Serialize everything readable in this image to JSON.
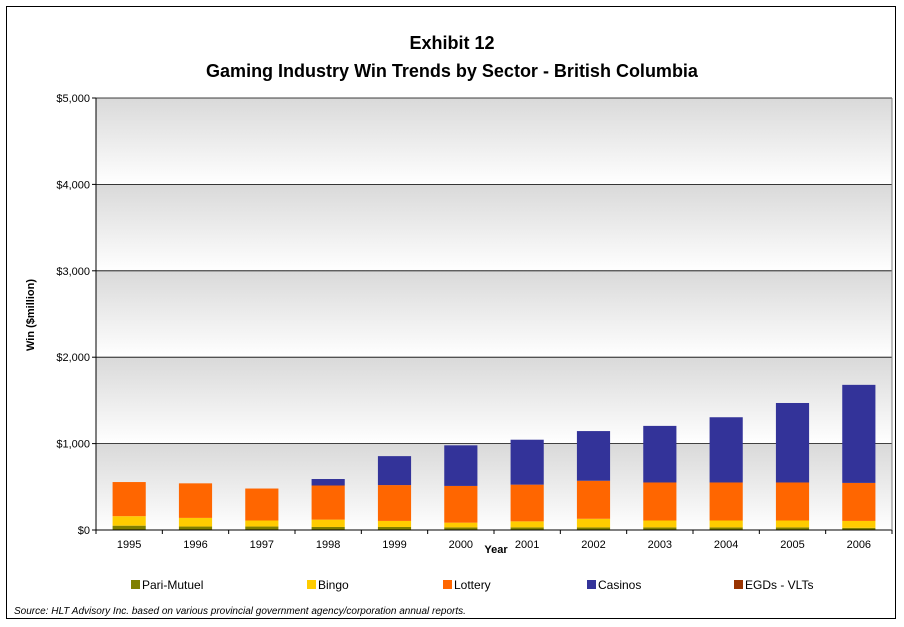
{
  "chart_data": {
    "type": "bar",
    "stacked": true,
    "title": "Exhibit 12",
    "subtitle": "Gaming Industry Win Trends by Sector - British Columbia",
    "xlabel": "Year",
    "ylabel": "Win ($million)",
    "ylim": [
      0,
      5000
    ],
    "yticks": [
      "$0",
      "$1,000",
      "$2,000",
      "$3,000",
      "$4,000",
      "$5,000"
    ],
    "ytick_values": [
      0,
      1000,
      2000,
      3000,
      4000,
      5000
    ],
    "grid": true,
    "legend_position": "bottom",
    "categories": [
      "1995",
      "1996",
      "1997",
      "1998",
      "1999",
      "2000",
      "2001",
      "2002",
      "2003",
      "2004",
      "2005",
      "2006"
    ],
    "series": [
      {
        "name": "Pari-Mutuel",
        "color": "#808000",
        "values": [
          50,
          40,
          40,
          35,
          35,
          30,
          30,
          30,
          30,
          30,
          30,
          25
        ]
      },
      {
        "name": "Bingo",
        "color": "#FFCC00",
        "values": [
          110,
          100,
          70,
          85,
          70,
          55,
          70,
          100,
          80,
          80,
          80,
          80
        ]
      },
      {
        "name": "Lottery",
        "color": "#FF6600",
        "values": [
          395,
          400,
          370,
          395,
          415,
          425,
          425,
          440,
          440,
          440,
          440,
          440
        ]
      },
      {
        "name": "Casinos",
        "color": "#333399",
        "values": [
          0,
          0,
          0,
          75,
          335,
          470,
          520,
          575,
          655,
          755,
          920,
          1135
        ]
      },
      {
        "name": "EGDs - VLTs",
        "color": "#993300",
        "values": [
          0,
          0,
          0,
          0,
          0,
          0,
          0,
          0,
          0,
          0,
          0,
          0
        ]
      }
    ],
    "source": "Source: HLT Advisory Inc. based on various provincial government agency/corporation annual reports."
  }
}
